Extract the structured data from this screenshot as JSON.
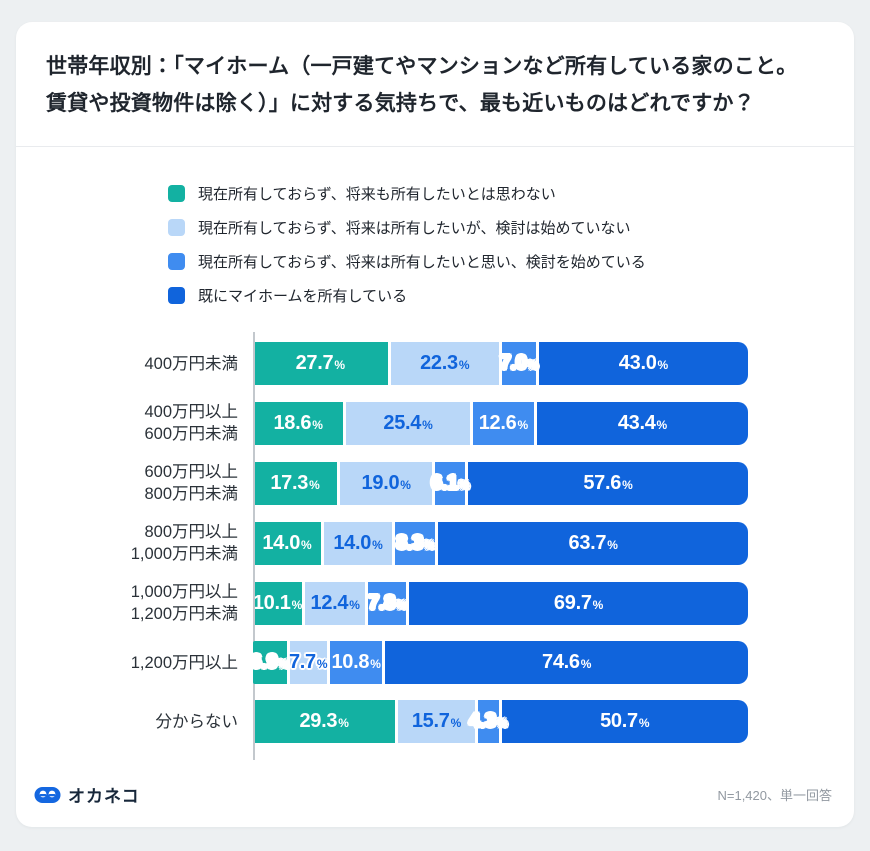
{
  "title_lines": [
    "世帯年収別：「マイホーム（一戸建てやマンションなど所有している家のこと。",
    "賃貸や投資物件は除く）」に対する気持ちで、最も近いものはどれですか？"
  ],
  "legend": [
    {
      "label": "現在所有しておらず、将来も所有したいとは思わない",
      "color": "#13b1a2"
    },
    {
      "label": "現在所有しておらず、将来は所有したいが、検討は始めていない",
      "color": "#b9d7f8"
    },
    {
      "label": "現在所有しておらず、将来は所有したいと思い、検討を始めている",
      "color": "#3f8cf0"
    },
    {
      "label": "既にマイホームを所有している",
      "color": "#1064dc"
    }
  ],
  "chart_data": {
    "type": "bar",
    "orientation": "horizontal",
    "stacked": true,
    "unit": "%",
    "xlim": [
      0,
      100
    ],
    "title": "世帯年収別：マイホームに対する気持ち",
    "categories": [
      "400万円未満",
      "400万円以上\n600万円未満",
      "600万円以上\n800万円未満",
      "800万円以上\n1,000万円未満",
      "1,000万円以上\n1,200万円未満",
      "1,200万円以上",
      "分からない"
    ],
    "series": [
      {
        "name": "現在所有しておらず、将来も所有したいとは思わない",
        "color": "#13b1a2",
        "text_color": "#ffffff",
        "values": [
          27.7,
          18.6,
          17.3,
          14.0,
          10.1,
          6.9,
          29.3
        ]
      },
      {
        "name": "現在所有しておらず、将来は所有したいが、検討は始めていない",
        "color": "#b9d7f8",
        "text_color": "#1064dc",
        "values": [
          22.3,
          25.4,
          19.0,
          14.0,
          12.4,
          7.7,
          15.7
        ]
      },
      {
        "name": "現在所有しておらず、将来は所有したいと思い、検討を始めている",
        "color": "#3f8cf0",
        "text_color": "#ffffff",
        "values": [
          7.0,
          12.6,
          6.1,
          8.3,
          7.8,
          10.8,
          4.3
        ]
      },
      {
        "name": "既にマイホームを所有している",
        "color": "#1064dc",
        "text_color": "#ffffff",
        "values": [
          43.0,
          43.4,
          57.6,
          63.7,
          69.7,
          74.6,
          50.7
        ]
      }
    ]
  },
  "footer": {
    "logo_text": "オカネコ",
    "logo_color": "#1467e0",
    "note": "N=1,420、単一回答"
  }
}
